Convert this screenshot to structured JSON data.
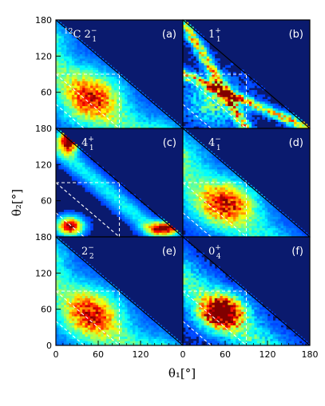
{
  "chart_data": {
    "type": "heatmap",
    "xlabel": "θ₁[°]",
    "ylabel": "θ₂[°]",
    "xlim": [
      0,
      180
    ],
    "ylim": [
      0,
      180
    ],
    "x_tick_labels": [
      "0",
      "60",
      "120",
      "180"
    ],
    "y_tick_labels": [
      "0",
      "60",
      "120",
      "180"
    ],
    "colormap": "jet",
    "background_color": "#0a1a6e",
    "overlay_lines": [
      {
        "style": "solid",
        "color": "#000000",
        "from": [
          0,
          180
        ],
        "to": [
          180,
          0
        ]
      },
      {
        "style": "dashed",
        "color": "#ffffff",
        "from": [
          0,
          90
        ],
        "to": [
          90,
          90
        ]
      },
      {
        "style": "dashed",
        "color": "#ffffff",
        "from": [
          90,
          0
        ],
        "to": [
          90,
          90
        ]
      },
      {
        "style": "dashed",
        "color": "#ffffff",
        "from": [
          0,
          90
        ],
        "to": [
          90,
          0
        ]
      },
      {
        "style": "dashed",
        "color": "#ffffff",
        "from": [
          0,
          40
        ],
        "to": [
          40,
          0
        ]
      }
    ],
    "panels": [
      {
        "letter": "(a)",
        "state_prefix": "12",
        "state_nucleus": "C ",
        "state_j": "2",
        "state_sub": "1",
        "state_sup": "−",
        "pattern": "diffuse-diagonal"
      },
      {
        "letter": "(b)",
        "state_prefix": "",
        "state_nucleus": "",
        "state_j": "1",
        "state_sub": "1",
        "state_sup": "+",
        "pattern": "v-shape"
      },
      {
        "letter": "(c)",
        "state_prefix": "",
        "state_nucleus": "",
        "state_j": "4",
        "state_sub": "1",
        "state_sup": "+",
        "pattern": "edge-peaks"
      },
      {
        "letter": "(d)",
        "state_prefix": "",
        "state_nucleus": "",
        "state_j": "4",
        "state_sub": "1",
        "state_sup": "−",
        "pattern": "center-blob"
      },
      {
        "letter": "(e)",
        "state_prefix": "",
        "state_nucleus": "",
        "state_j": "2",
        "state_sub": "2",
        "state_sup": "−",
        "pattern": "diffuse-diagonal"
      },
      {
        "letter": "(f)",
        "state_prefix": "",
        "state_nucleus": "",
        "state_j": "0",
        "state_sub": "4",
        "state_sup": "+",
        "pattern": "strong-center"
      }
    ]
  }
}
